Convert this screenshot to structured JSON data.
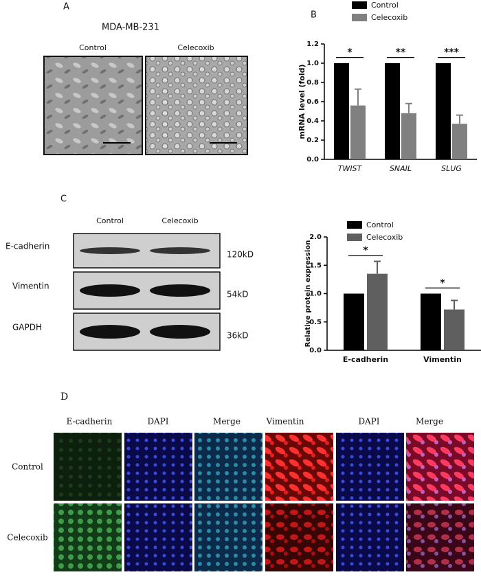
{
  "figure": {
    "panel_labels": [
      "A",
      "B",
      "C",
      "D"
    ],
    "panel_a": {
      "title": "MDA-MB-231",
      "columns": [
        "Control",
        "Celecoxib"
      ]
    },
    "panel_c_blot": {
      "columns": [
        "Control",
        "Celecoxib"
      ],
      "rows": [
        {
          "label": "E-cadherin",
          "size": "120kD"
        },
        {
          "label": "Vimentin",
          "size": "54kD"
        },
        {
          "label": "GAPDH",
          "size": "36kD"
        }
      ]
    },
    "panel_d": {
      "columns": [
        "E-cadherin",
        "DAPI",
        "Merge",
        "Vimentin",
        "DAPI",
        "Merge"
      ],
      "rows": [
        "Control",
        "Celecoxib"
      ]
    }
  },
  "chart_data": [
    {
      "type": "bar",
      "y_label": "mRNA level (fold)",
      "categories": [
        "TWIST",
        "SNAIL",
        "SLUG"
      ],
      "series": [
        {
          "name": "Control",
          "color": "#000000",
          "values": [
            1,
            1,
            1
          ]
        },
        {
          "name": "Celecoxib",
          "color": "#808080",
          "values": [
            0.56,
            0.48,
            0.37
          ],
          "errors": [
            0.17,
            0.1,
            0.09
          ]
        }
      ],
      "ylim": [
        0,
        1.2
      ],
      "yticks": [
        {
          "value": 0,
          "label": "0.0"
        },
        0.2,
        0.4,
        0.6,
        0.8,
        {
          "value": 1,
          "label": "1.0"
        },
        1.2
      ],
      "significance": [
        "*",
        "**",
        "***"
      ],
      "legend": "top"
    },
    {
      "type": "bar",
      "y_label": "Relative protein expression",
      "categories": [
        "E-cadherin",
        "Vimentin"
      ],
      "series": [
        {
          "name": "Control",
          "color": "#000000",
          "values": [
            1,
            1
          ]
        },
        {
          "name": "Celecoxib",
          "color": "#5f5f5f",
          "values": [
            1.35,
            0.72
          ],
          "errors": [
            0.22,
            0.16
          ]
        }
      ],
      "ylim": [
        0,
        2
      ],
      "yticks": [
        {
          "value": 0,
          "label": "0.0"
        },
        0.5,
        {
          "value": 1,
          "label": "1.0"
        },
        1.5,
        {
          "value": 2,
          "label": "2.0"
        }
      ],
      "significance": [
        "*",
        "*"
      ],
      "legend": "top"
    }
  ]
}
